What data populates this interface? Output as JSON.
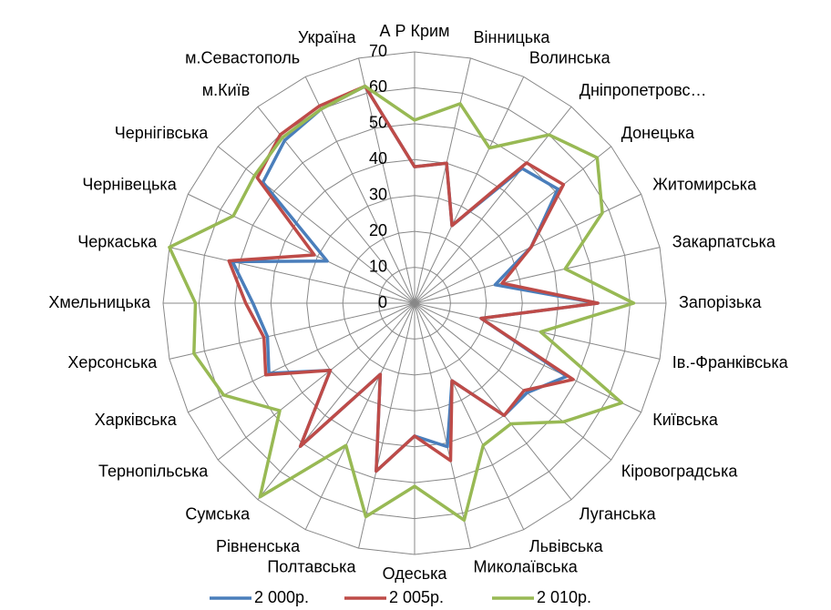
{
  "chart_data": {
    "type": "radar",
    "categories": [
      "А Р Крим",
      "Вінницька",
      "Волинська",
      "Дніпропетровс…",
      "Донецька",
      "Житомирська",
      "Закарпатська",
      "Запорізька",
      "Ів.-Франківська",
      "Київська",
      "Кіровоградська",
      "Луганська",
      "Львівська",
      "Миколаївська",
      "Одеська",
      "Полтавська",
      "Рівненська",
      "Сумська",
      "Тернопільська",
      "Харківська",
      "Херсонська",
      "Хмельницька",
      "Черкаська",
      "Чернівецька",
      "Чернігівська",
      "м.Київ",
      "м.Севастополь",
      "Україна"
    ],
    "series": [
      {
        "name": "2 000р.",
        "color": "#4a7ebb",
        "values": [
          38,
          40,
          24,
          48,
          51,
          36,
          23,
          51,
          19,
          47,
          40,
          40,
          24,
          41,
          37,
          48,
          22,
          51,
          30,
          45,
          42,
          45,
          52,
          27,
          54,
          58,
          60,
          62
        ]
      },
      {
        "name": "2 005р.",
        "color": "#be4b48",
        "values": [
          38,
          40,
          24,
          50,
          53,
          36,
          25,
          51,
          19,
          49,
          39,
          40,
          24,
          45,
          37,
          48,
          22,
          51,
          30,
          46,
          43,
          47,
          53,
          31,
          56,
          60,
          61,
          62
        ]
      },
      {
        "name": "2 010р.",
        "color": "#98b954",
        "values": [
          51,
          57,
          48,
          60,
          65,
          58,
          43,
          61,
          36,
          64,
          53,
          43,
          44,
          62,
          51,
          61,
          44,
          69,
          48,
          59,
          63,
          61,
          70,
          56,
          57,
          59,
          60,
          62
        ]
      }
    ],
    "ylim": [
      0,
      70
    ],
    "yticks": [
      0,
      10,
      20,
      30,
      40,
      50,
      60,
      70
    ],
    "grid": true,
    "legend": "bottom"
  }
}
